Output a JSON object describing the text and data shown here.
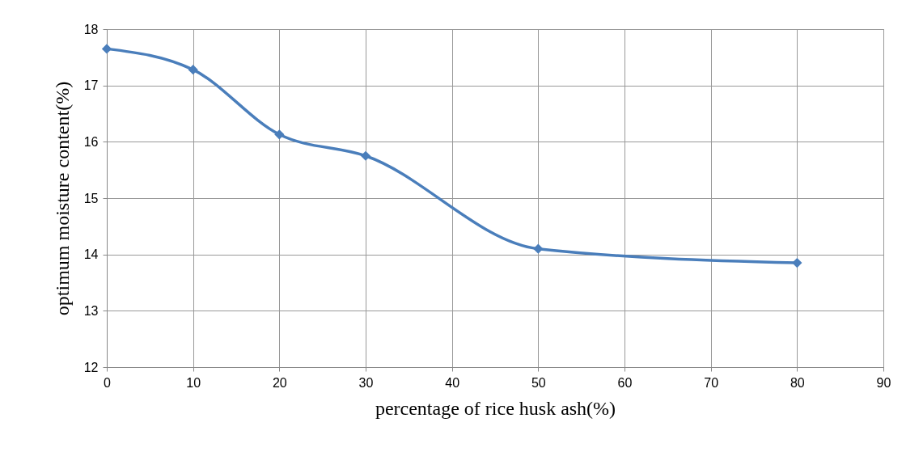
{
  "chart_data": {
    "type": "line",
    "xlabel": "percentage of rice husk ash(%)",
    "ylabel": "optimum moisture content(%)",
    "x": [
      0,
      10,
      20,
      30,
      50,
      80
    ],
    "series": [
      {
        "color": "#4a7ebb",
        "values": [
          17.65,
          17.28,
          16.13,
          15.75,
          14.1,
          13.85
        ]
      }
    ],
    "xlim": [
      0,
      90
    ],
    "xticks": [
      0,
      10,
      20,
      30,
      40,
      50,
      60,
      70,
      80,
      90
    ],
    "ylim": [
      12,
      18
    ],
    "yticks": [
      12,
      13,
      14,
      15,
      16,
      17,
      18
    ],
    "grid": true,
    "marker": "diamond",
    "line_style": "solid"
  }
}
